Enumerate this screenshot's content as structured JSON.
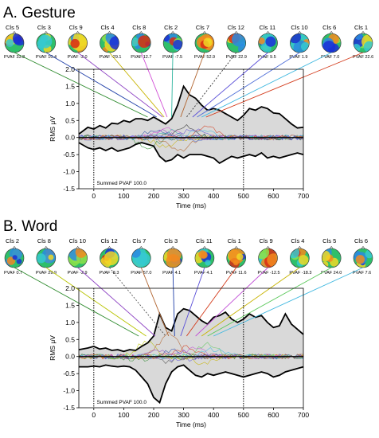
{
  "chart_data": [
    {
      "panel": "A. Gesture",
      "type": "line",
      "xlabel": "Time (ms)",
      "ylabel": "RMS μV",
      "xlim": [
        -50,
        700
      ],
      "ylim": [
        -1.5,
        2.0
      ],
      "xticks": [
        0,
        100,
        200,
        300,
        400,
        500,
        600,
        700
      ],
      "yticks": [
        -1.5,
        -1.0,
        -0.5,
        0,
        0.5,
        1.0,
        1.5,
        2.0
      ],
      "annotation": "Summed PVAF 100.0",
      "vlines": [
        0,
        500
      ],
      "clusters": [
        {
          "label": "Cls 5",
          "pvaf": "PVAF 33.8",
          "color": "#2e8b2e",
          "peak_x": 180
        },
        {
          "label": "Cls 3",
          "pvaf": "PVAF 10.4",
          "color": "#1f3fa8",
          "peak_x": 210
        },
        {
          "label": "Cls 9",
          "pvaf": "PVAF -2.0",
          "color": "#8e44c4",
          "peak_x": 230
        },
        {
          "label": "Cls 4",
          "pvaf": "PVAF -29.1",
          "color": "#c8b400",
          "peak_x": 235
        },
        {
          "label": "Cls 8",
          "pvaf": "PVAF 12.7",
          "color": "#d14fd6",
          "peak_x": 245
        },
        {
          "label": "Cls 2",
          "pvaf": "PVAF -7.5",
          "color": "#2fb59f",
          "peak_x": 260
        },
        {
          "label": "Cls 7",
          "pvaf": "PVAF 52.9",
          "color": "#b0622c",
          "peak_x": 290
        },
        {
          "label": "Cls 12",
          "pvaf": "PVAF 22.9",
          "color": "#333333",
          "peak_x": 310,
          "dashed": true
        },
        {
          "label": "Cls 11",
          "pvaf": "PVAF 9.5",
          "color": "#5a4fd8",
          "peak_x": 330
        },
        {
          "label": "Cls 10",
          "pvaf": "PVAF 1.9",
          "color": "#4f6fd8",
          "peak_x": 345
        },
        {
          "label": "Cls 6",
          "pvaf": "PVAF 7.0",
          "color": "#3fb8e0",
          "peak_x": 360
        },
        {
          "label": "Cls 1",
          "pvaf": "PVAF 22.6",
          "color": "#d33a1a",
          "peak_x": 375
        }
      ],
      "envelope": {
        "x": [
          -50,
          -20,
          0,
          20,
          40,
          60,
          80,
          100,
          120,
          140,
          160,
          180,
          200,
          220,
          240,
          260,
          280,
          300,
          320,
          340,
          360,
          380,
          400,
          420,
          440,
          460,
          480,
          500,
          520,
          540,
          560,
          580,
          600,
          620,
          640,
          660,
          680,
          700
        ],
        "upper": [
          0.1,
          0.3,
          0.25,
          0.35,
          0.28,
          0.42,
          0.4,
          0.5,
          0.45,
          0.55,
          0.55,
          0.5,
          0.6,
          0.5,
          0.4,
          0.55,
          0.95,
          1.5,
          1.25,
          1.15,
          0.95,
          0.8,
          0.85,
          0.8,
          0.7,
          0.6,
          0.5,
          0.65,
          0.85,
          0.8,
          0.9,
          0.85,
          0.72,
          0.7,
          0.55,
          0.4,
          0.28,
          0.3
        ],
        "lower": [
          -0.15,
          -0.3,
          -0.35,
          -0.3,
          -0.38,
          -0.3,
          -0.4,
          -0.35,
          -0.3,
          -0.2,
          -0.15,
          -0.2,
          -0.25,
          -0.55,
          -0.7,
          -0.65,
          -0.5,
          -0.6,
          -0.5,
          -0.5,
          -0.5,
          -0.55,
          -0.6,
          -0.75,
          -0.65,
          -0.55,
          -0.6,
          -0.55,
          -0.5,
          -0.55,
          -0.45,
          -0.6,
          -0.55,
          -0.6,
          -0.55,
          -0.5,
          -0.45,
          -0.5
        ]
      }
    },
    {
      "panel": "B. Word",
      "type": "line",
      "xlabel": "Time (ms)",
      "ylabel": "RMS μV",
      "xlim": [
        -50,
        700
      ],
      "ylim": [
        -1.5,
        2.0
      ],
      "xticks": [
        0,
        100,
        200,
        300,
        400,
        500,
        600,
        700
      ],
      "yticks": [
        -1.5,
        -1.0,
        -0.5,
        0,
        0.5,
        1.0,
        1.5,
        2.0
      ],
      "annotation": "Summed PVAF 100.0",
      "vlines": [
        0,
        500
      ],
      "clusters": [
        {
          "label": "Cls 2",
          "pvaf": "PVAF 0.7",
          "color": "#2e8b2e",
          "peak_x": 150
        },
        {
          "label": "Cls 8",
          "pvaf": "PVAF 29.9",
          "color": "#b8c400",
          "peak_x": 175
        },
        {
          "label": "Cls 10",
          "pvaf": "PVAF -2.9",
          "color": "#8e44c4",
          "peak_x": 205
        },
        {
          "label": "Cls 12",
          "pvaf": "PVAF -8.3",
          "color": "#555555",
          "peak_x": 240,
          "dashed": true
        },
        {
          "label": "Cls 7",
          "pvaf": "PVAF 57.0",
          "color": "#b0622c",
          "peak_x": 250
        },
        {
          "label": "Cls 3",
          "pvaf": "PVAF 4.1",
          "color": "#1f3fa8",
          "peak_x": 270
        },
        {
          "label": "Cls 11",
          "pvaf": "PVAF 4.1",
          "color": "#5a4fd8",
          "peak_x": 290
        },
        {
          "label": "Cls 1",
          "pvaf": "PVAF 11.6",
          "color": "#d33a1a",
          "peak_x": 310
        },
        {
          "label": "Cls 9",
          "pvaf": "PVAF -12.5",
          "color": "#c04fd6",
          "peak_x": 340
        },
        {
          "label": "Cls 4",
          "pvaf": "PVAF -18.3",
          "color": "#c8b400",
          "peak_x": 360
        },
        {
          "label": "Cls 5",
          "pvaf": "PVAF 24.0",
          "color": "#5ac85a",
          "peak_x": 380
        },
        {
          "label": "Cls 6",
          "pvaf": "PVAF 7.6",
          "color": "#3fb8e0",
          "peak_x": 400
        }
      ],
      "envelope": {
        "x": [
          -50,
          -20,
          0,
          20,
          40,
          60,
          80,
          100,
          120,
          140,
          160,
          180,
          200,
          220,
          240,
          260,
          280,
          300,
          320,
          340,
          360,
          380,
          400,
          420,
          440,
          460,
          480,
          500,
          520,
          540,
          560,
          580,
          600,
          620,
          640,
          660,
          680,
          700
        ],
        "upper": [
          0.2,
          0.25,
          0.3,
          0.22,
          0.25,
          0.18,
          0.2,
          0.15,
          0.2,
          0.18,
          0.3,
          0.4,
          0.6,
          1.25,
          0.85,
          0.75,
          1.25,
          1.4,
          1.35,
          1.2,
          1.05,
          0.95,
          1.15,
          1.2,
          1.3,
          1.1,
          1.0,
          1.1,
          1.25,
          1.15,
          1.2,
          1.0,
          0.85,
          0.9,
          1.25,
          0.95,
          0.8,
          0.65
        ],
        "lower": [
          -0.3,
          -0.3,
          -0.28,
          -0.3,
          -0.25,
          -0.28,
          -0.3,
          -0.28,
          -0.3,
          -0.4,
          -0.6,
          -0.8,
          -1.2,
          -1.35,
          -0.8,
          -0.45,
          -0.3,
          -0.25,
          -0.4,
          -0.55,
          -0.6,
          -0.5,
          -0.55,
          -0.5,
          -0.45,
          -0.5,
          -0.55,
          -0.6,
          -0.55,
          -0.5,
          -0.45,
          -0.5,
          -0.6,
          -0.55,
          -0.45,
          -0.4,
          -0.35,
          -0.3
        ]
      }
    }
  ]
}
